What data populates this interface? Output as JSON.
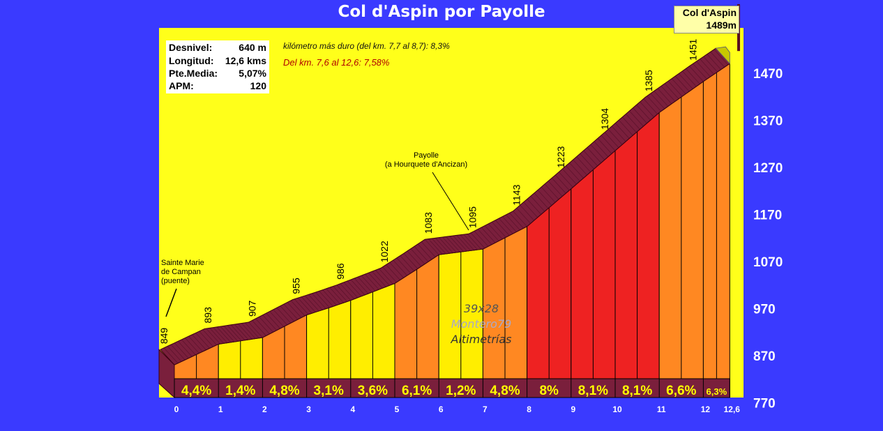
{
  "title": "Col d'Aspin por Payolle",
  "summit": {
    "name": "Col d'Aspin",
    "altitude": "1489m"
  },
  "stats": [
    {
      "label": "Desnivel:",
      "value": "640 m"
    },
    {
      "label": "Longitud:",
      "value": "12,6 kms"
    },
    {
      "label": "Pte.Media:",
      "value": "5,07%"
    },
    {
      "label": "APM:",
      "value": "120"
    }
  ],
  "notes": {
    "hardest_km": "kilómetro más duro (del km. 7,7 al 8,7):  8,3%",
    "section": "Del km. 7,6 al 12,6:  7,58%"
  },
  "annotations": {
    "start": [
      "Sainte Marie",
      "de Campan",
      "(puente)"
    ],
    "payolle": [
      "Payolle",
      "(a Hourquete d'Ancizan)"
    ]
  },
  "watermark": {
    "line1": "39x28",
    "line2": "Montero79",
    "line3": "Altimetrías"
  },
  "chart_data": {
    "type": "area",
    "x_ticks": [
      "0",
      "1",
      "2",
      "3",
      "4",
      "5",
      "6",
      "7",
      "8",
      "9",
      "10",
      "11",
      "12",
      "12,6"
    ],
    "x_values": [
      0,
      1,
      2,
      3,
      4,
      5,
      6,
      7,
      8,
      9,
      10,
      11,
      12,
      12.6
    ],
    "y_ticks": [
      "770",
      "870",
      "970",
      "1070",
      "1170",
      "1270",
      "1370",
      "1470"
    ],
    "ylim": [
      770,
      1510
    ],
    "km_altitude_labels": [
      "849",
      "893",
      "907",
      "955",
      "986",
      "1022",
      "1083",
      "1095",
      "1143",
      "1223",
      "1304",
      "1385",
      "1451"
    ],
    "profile": [
      {
        "km": 0,
        "alt": 849
      },
      {
        "km": 0.5,
        "alt": 871
      },
      {
        "km": 1,
        "alt": 893
      },
      {
        "km": 1.5,
        "alt": 900
      },
      {
        "km": 2,
        "alt": 907
      },
      {
        "km": 2.5,
        "alt": 931
      },
      {
        "km": 3,
        "alt": 955
      },
      {
        "km": 3.5,
        "alt": 970
      },
      {
        "km": 4,
        "alt": 986
      },
      {
        "km": 4.5,
        "alt": 1004
      },
      {
        "km": 5,
        "alt": 1022
      },
      {
        "km": 5.5,
        "alt": 1052
      },
      {
        "km": 6,
        "alt": 1083
      },
      {
        "km": 6.5,
        "alt": 1089
      },
      {
        "km": 7,
        "alt": 1095
      },
      {
        "km": 7.5,
        "alt": 1119
      },
      {
        "km": 8,
        "alt": 1143
      },
      {
        "km": 9,
        "alt": 1223
      },
      {
        "km": 10,
        "alt": 1304
      },
      {
        "km": 11,
        "alt": 1385
      },
      {
        "km": 12,
        "alt": 1451
      },
      {
        "km": 12.6,
        "alt": 1489
      }
    ],
    "segments": [
      {
        "from": 0,
        "to": 1,
        "grade": "4,4%"
      },
      {
        "from": 1,
        "to": 2,
        "grade": "1,4%"
      },
      {
        "from": 2,
        "to": 3,
        "grade": "4,8%"
      },
      {
        "from": 3,
        "to": 4,
        "grade": "3,1%"
      },
      {
        "from": 4,
        "to": 5,
        "grade": "3,6%"
      },
      {
        "from": 5,
        "to": 6,
        "grade": "6,1%"
      },
      {
        "from": 6,
        "to": 7,
        "grade": "1,2%"
      },
      {
        "from": 7,
        "to": 8,
        "grade": "4,8%"
      },
      {
        "from": 8,
        "to": 9,
        "grade": "8%"
      },
      {
        "from": 9,
        "to": 10,
        "grade": "8,1%"
      },
      {
        "from": 10,
        "to": 11,
        "grade": "8,1%"
      },
      {
        "from": 11,
        "to": 12,
        "grade": "6,6%"
      },
      {
        "from": 12,
        "to": 12.6,
        "grade": "6,3%"
      }
    ],
    "colors": {
      "background": "#3a3aff",
      "sky": "#ffff1a",
      "road": "#7a1f3c",
      "grade_low": "#ffee00",
      "grade_mid": "#ff8822",
      "grade_high": "#ee2222",
      "grade_text": "#ffff00",
      "tick_text": "#ffffff"
    }
  }
}
